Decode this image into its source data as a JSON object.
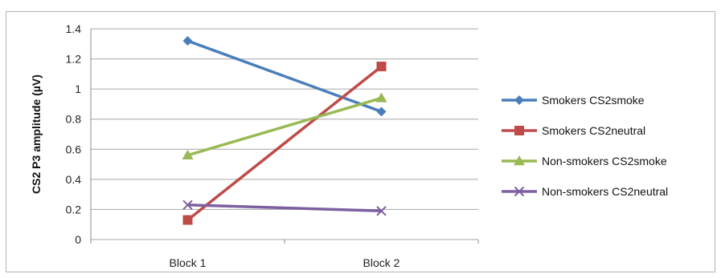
{
  "chart_data": {
    "type": "line",
    "title": "",
    "xlabel": "",
    "ylabel": "CS2 P3 amplitude  (µV)",
    "categories": [
      "Block 1",
      "Block 2"
    ],
    "ylim": [
      0,
      1.4
    ],
    "yticks": [
      0,
      0.2,
      0.4,
      0.6,
      0.8,
      1,
      1.2,
      1.4
    ],
    "grid": true,
    "legend_position": "right",
    "series": [
      {
        "name": "Smokers CS2smoke",
        "values": [
          1.32,
          0.85
        ],
        "color": "#4a7ebb",
        "marker": "diamond"
      },
      {
        "name": "Smokers CS2neutral",
        "values": [
          0.13,
          1.15
        ],
        "color": "#be4b48",
        "marker": "square"
      },
      {
        "name": "Non-smokers CS2smoke",
        "values": [
          0.56,
          0.94
        ],
        "color": "#98b954",
        "marker": "triangle"
      },
      {
        "name": "Non-smokers CS2neutral",
        "values": [
          0.23,
          0.19
        ],
        "color": "#7d60a0",
        "marker": "x"
      }
    ]
  }
}
